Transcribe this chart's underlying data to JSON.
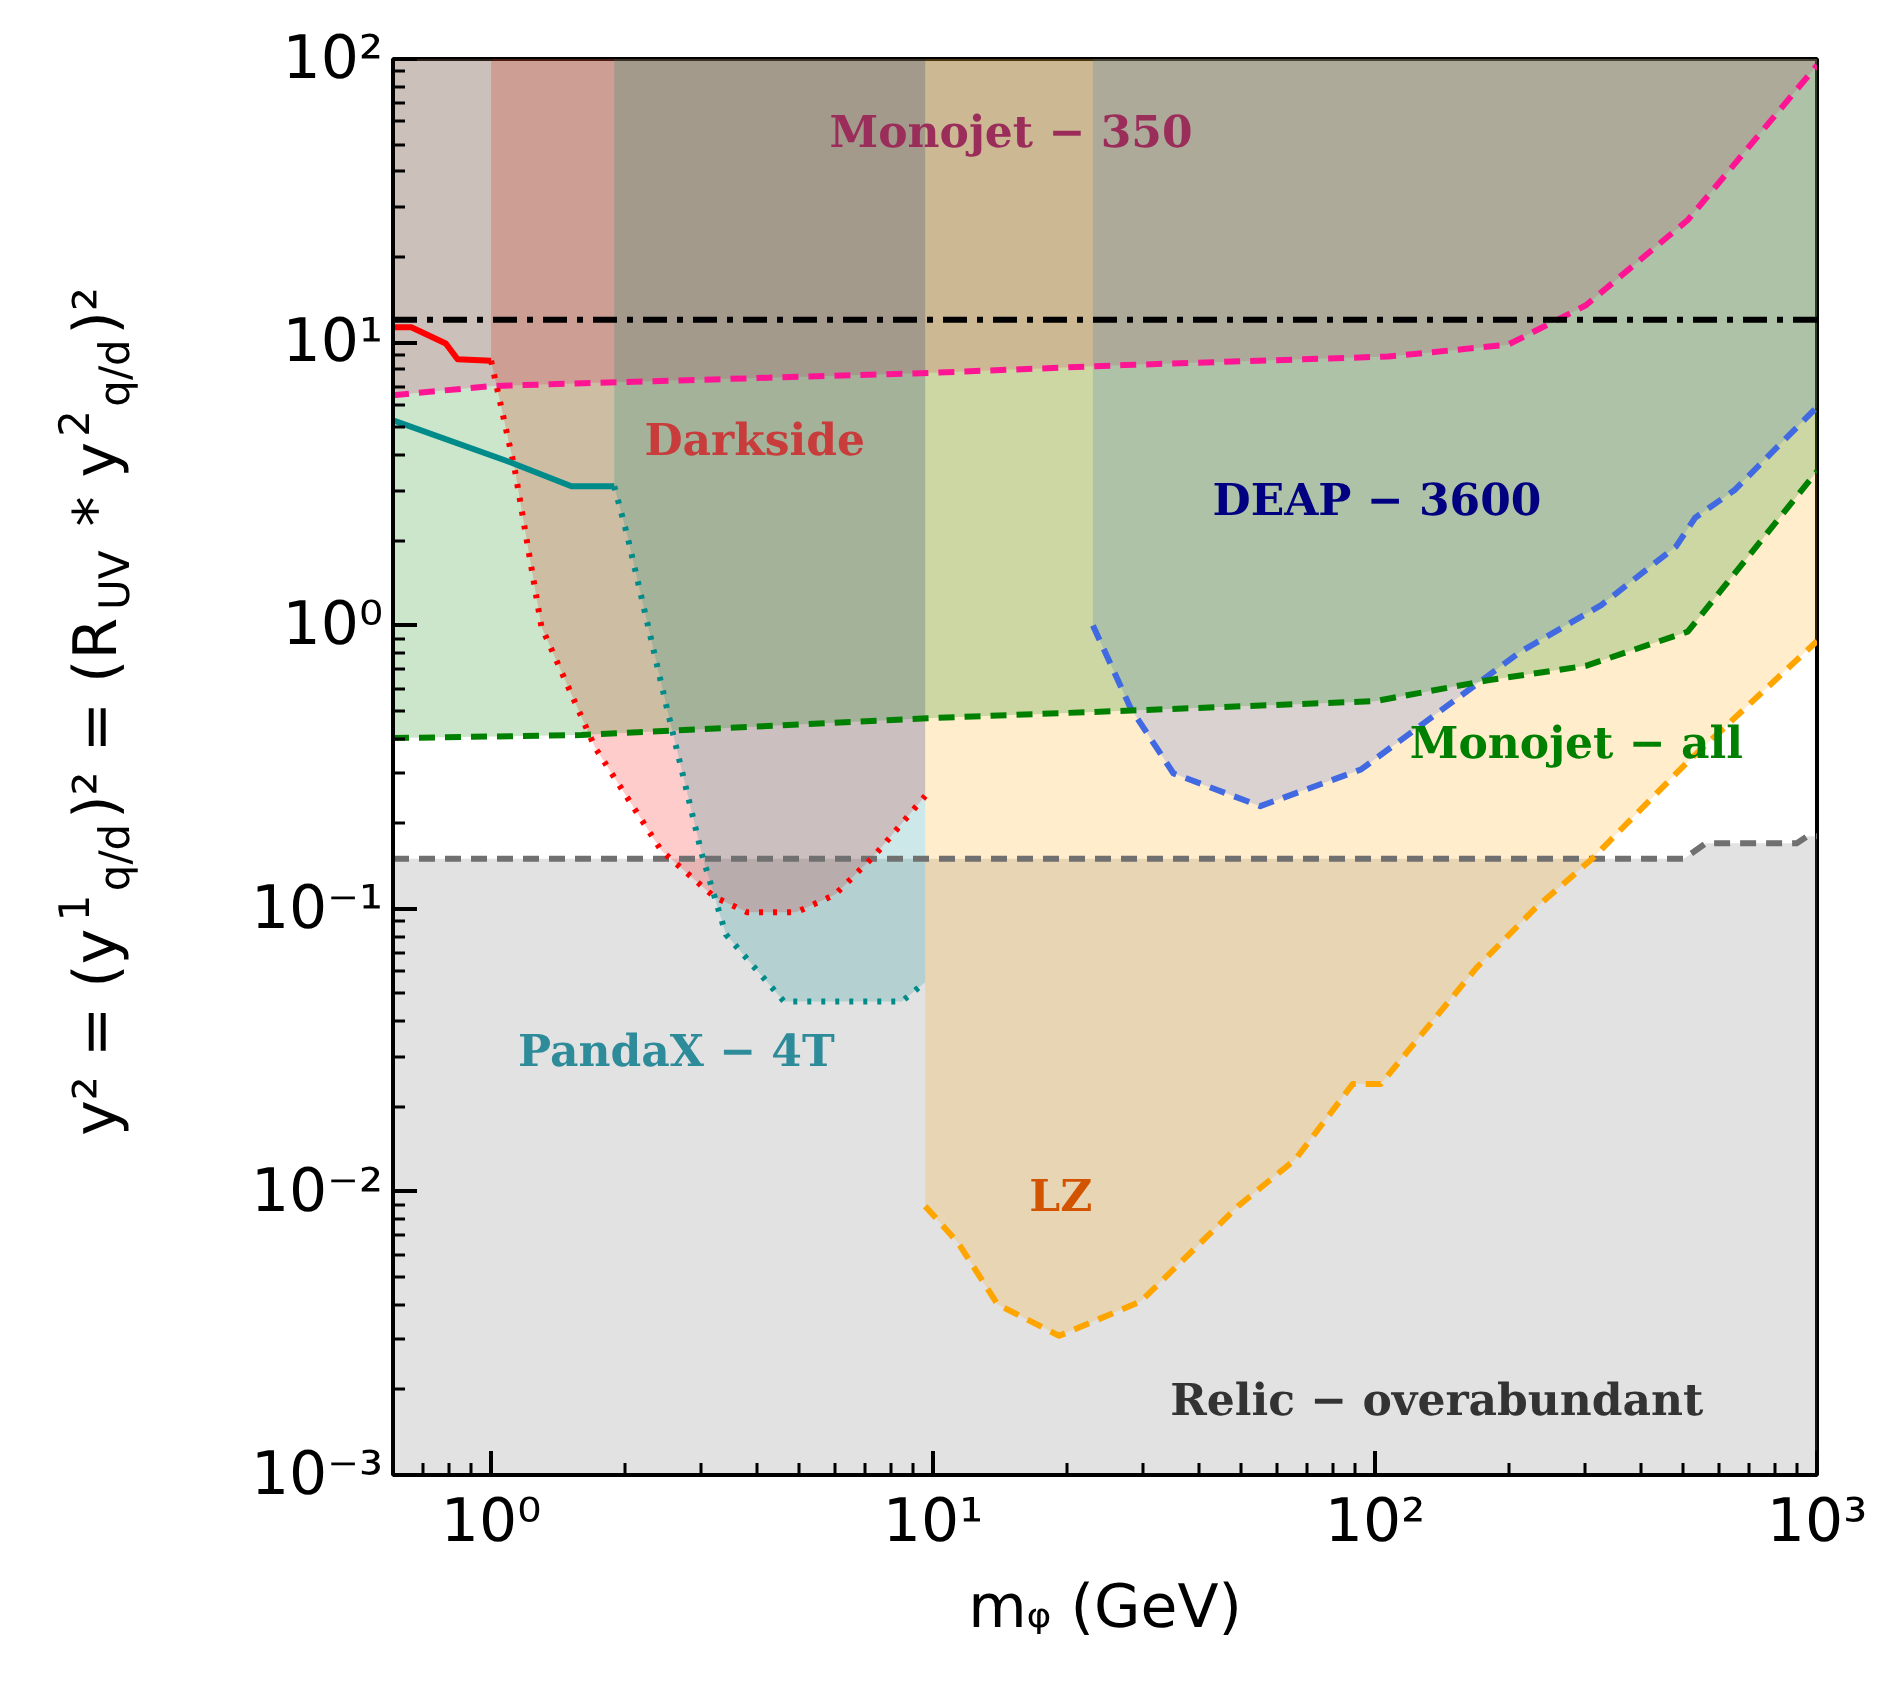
{
  "chart_data": {
    "type": "line",
    "xlabel": "mᵩ (GeV)",
    "ylabel": "y² = (y$^{1}$$_{q/d}$)² = (R$_{UV}$ * y$^{2}$$_{q/d}$)²",
    "log": "xy",
    "grid": false,
    "xlim": [
      0.6,
      1000
    ],
    "ylim": [
      0.001,
      100
    ],
    "xticks": [
      {
        "value": 1,
        "label": "10⁰"
      },
      {
        "value": 10,
        "label": "10¹"
      },
      {
        "value": 100,
        "label": "10²"
      },
      {
        "value": 1000,
        "label": "10³"
      }
    ],
    "yticks": [
      {
        "value": 0.001,
        "label": "10⁻³"
      },
      {
        "value": 0.01,
        "label": "10⁻²"
      },
      {
        "value": 0.1,
        "label": "10⁻¹"
      },
      {
        "value": 1,
        "label": "10⁰"
      },
      {
        "value": 10,
        "label": "10¹"
      },
      {
        "value": 100,
        "label": "10²"
      }
    ],
    "series": [
      {
        "color": "#707070",
        "line_style": "dashed",
        "x": [
          0.6,
          10,
          100,
          500,
          560,
          900,
          950,
          1000
        ],
        "values": [
          0.15,
          0.15,
          0.15,
          0.15,
          0.17,
          0.17,
          0.18,
          0.18
        ],
        "lower": [
          0.001,
          0.001,
          0.001,
          0.001,
          0.001,
          0.001,
          0.001,
          0.001
        ],
        "upper": [
          0.15,
          0.15,
          0.15,
          0.15,
          0.17,
          0.17,
          0.18,
          0.18
        ]
      },
      {
        "color": "#ff1493",
        "line_style": "dashed",
        "x": [
          0.6,
          1,
          10,
          27,
          107,
          200,
          300,
          510,
          1000
        ],
        "values": [
          6.5,
          7.0,
          7.8,
          8.3,
          8.9,
          9.8,
          13.5,
          27,
          95
        ],
        "lower": [
          6.5,
          7.0,
          7.8,
          8.3,
          8.9,
          9.8,
          13.5,
          27,
          95
        ],
        "upper": [
          100,
          100,
          100,
          100,
          100,
          100,
          100,
          100,
          100
        ]
      },
      {
        "color": "#ff0000",
        "line_style": "solid",
        "x": [
          0.6,
          0.66,
          0.79,
          0.84,
          1.0
        ],
        "values": [
          11.3,
          11.3,
          9.9,
          8.7,
          8.6
        ]
      },
      {
        "color": "#ff0000",
        "line_style": "dotted",
        "x": [
          1.0,
          1.13,
          1.3,
          1.72,
          2.43,
          3.2,
          3.8,
          4.9,
          6.0,
          7.4,
          9.6
        ],
        "values": [
          8.6,
          3.6,
          0.99,
          0.37,
          0.16,
          0.11,
          0.097,
          0.097,
          0.112,
          0.155,
          0.25
        ],
        "lower": [
          8.6,
          3.6,
          0.99,
          0.37,
          0.16,
          0.11,
          0.097,
          0.097,
          0.112,
          0.155,
          0.25
        ],
        "upper": [
          100,
          100,
          100,
          100,
          100,
          100,
          100,
          100,
          100,
          100,
          100
        ]
      },
      {
        "color": "#008b8b",
        "line_style": "solid",
        "x": [
          0.6,
          1.09,
          1.52,
          1.9
        ],
        "values": [
          5.3,
          3.8,
          3.1,
          3.1
        ]
      },
      {
        "color": "#008b8b",
        "line_style": "dotted",
        "x": [
          1.9,
          2.03,
          2.5,
          3.0,
          3.4,
          4.6,
          8.5,
          9.6
        ],
        "values": [
          3.1,
          2.1,
          0.51,
          0.155,
          0.081,
          0.047,
          0.047,
          0.055
        ],
        "lower": [
          3.1,
          2.1,
          0.51,
          0.155,
          0.081,
          0.047,
          0.047,
          0.055
        ],
        "upper": [
          100,
          100,
          100,
          100,
          100,
          100,
          100,
          100
        ]
      },
      {
        "color": "#ffa500",
        "line_style": "dashed",
        "x": [
          9.6,
          11.4,
          14,
          19.3,
          29.5,
          49,
          66,
          89,
          103,
          170,
          230,
          310,
          510,
          1000
        ],
        "values": [
          0.0089,
          0.0066,
          0.004,
          0.0031,
          0.0041,
          0.0089,
          0.013,
          0.024,
          0.024,
          0.062,
          0.1,
          0.15,
          0.33,
          0.88
        ],
        "lower": [
          0.0089,
          0.0066,
          0.004,
          0.0031,
          0.0041,
          0.0089,
          0.013,
          0.024,
          0.024,
          0.062,
          0.1,
          0.15,
          0.33,
          0.88
        ],
        "upper": [
          100,
          100,
          100,
          100,
          100,
          100,
          100,
          100,
          100,
          100,
          100,
          100,
          100,
          100
        ]
      },
      {
        "color": "#4169e1",
        "line_style": "dashed",
        "x": [
          23,
          28,
          35,
          55,
          93,
          214,
          325,
          480,
          530,
          650,
          1000
        ],
        "values": [
          1.0,
          0.51,
          0.3,
          0.23,
          0.31,
          0.81,
          1.18,
          1.9,
          2.4,
          3.0,
          5.9
        ],
        "lower": [
          1.0,
          0.51,
          0.3,
          0.23,
          0.31,
          0.81,
          1.18,
          1.9,
          2.4,
          3.0,
          5.9
        ],
        "upper": [
          100,
          100,
          100,
          100,
          100,
          100,
          100,
          100,
          100,
          100,
          100
        ]
      },
      {
        "color": "#008000",
        "line_style": "dashed",
        "x": [
          0.6,
          1.6,
          9.7,
          100,
          180,
          300,
          510,
          1000
        ],
        "values": [
          0.4,
          0.41,
          0.47,
          0.54,
          0.64,
          0.72,
          0.95,
          3.5
        ],
        "lower": [
          0.4,
          0.41,
          0.47,
          0.54,
          0.64,
          0.72,
          0.95,
          3.5
        ],
        "upper": [
          100,
          100,
          100,
          100,
          100,
          100,
          100,
          100
        ]
      }
    ],
    "ref_lines": [
      {
        "axis": "y",
        "value": 12,
        "color": "#000000",
        "line_style": "dashdot"
      }
    ],
    "annotations": [
      "Monojet − 350",
      "Darkside",
      "DEAP − 3600",
      "Monojet − all",
      "PandaX − 4T",
      "LZ",
      "Relic − overabundant"
    ]
  }
}
